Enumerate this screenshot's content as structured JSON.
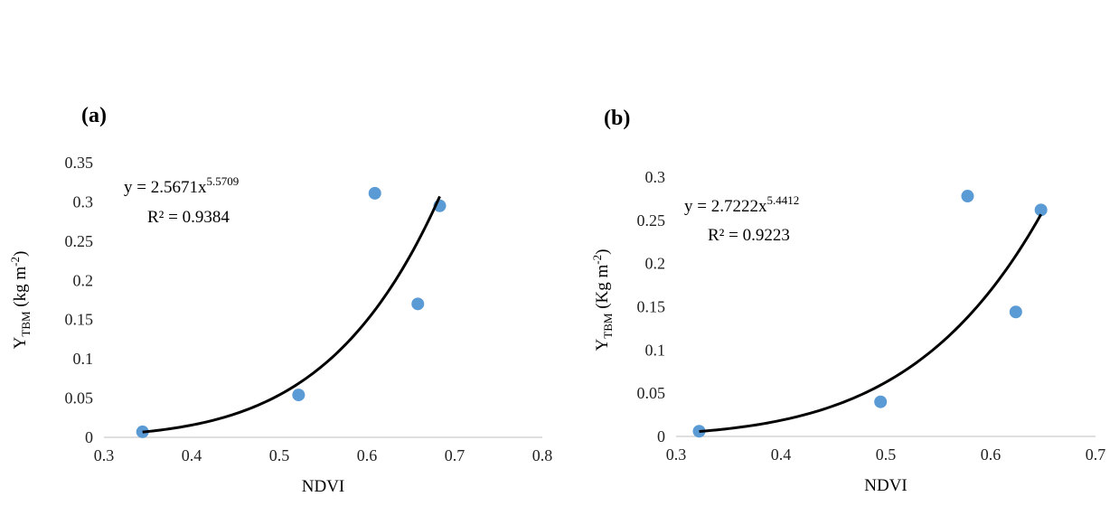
{
  "chart_data": [
    {
      "type": "scatter",
      "panel": "(a)",
      "xlabel": "NDVI",
      "ylabel": {
        "main": "Y",
        "sub": "TBM",
        "unit": " (kg m",
        "unit_sup": "-2",
        "close": ")"
      },
      "x": [
        0.344,
        0.522,
        0.609,
        0.658,
        0.683
      ],
      "values": [
        0.007,
        0.054,
        0.311,
        0.17,
        0.295
      ],
      "color": "#5b9bd5",
      "xlim": [
        0.3,
        0.8
      ],
      "xticks": [
        0.3,
        0.4,
        0.5,
        0.6,
        0.7,
        0.8
      ],
      "ylim": [
        0,
        0.35
      ],
      "yticks": [
        0,
        0.05,
        0.1,
        0.15,
        0.2,
        0.25,
        0.3,
        0.35
      ],
      "trendline": {
        "coefficient": 2.5671,
        "exponent": 5.5709,
        "color": "#000000",
        "equation": "y = 2.5671x",
        "equation_exponent": "5.5709",
        "r_squared": "R² = 0.9384"
      }
    },
    {
      "type": "scatter",
      "panel": "(b)",
      "xlabel": "NDVI",
      "ylabel": {
        "main": "Y",
        "sub": "TBM",
        "unit": " (Kg m",
        "unit_sup": "-2",
        "close": ")"
      },
      "x": [
        0.322,
        0.495,
        0.578,
        0.624,
        0.648
      ],
      "values": [
        0.006,
        0.04,
        0.278,
        0.144,
        0.262
      ],
      "color": "#5b9bd5",
      "xlim": [
        0.3,
        0.7
      ],
      "xticks": [
        0.3,
        0.4,
        0.5,
        0.6,
        0.7
      ],
      "ylim": [
        0,
        0.3
      ],
      "yticks": [
        0,
        0.05,
        0.1,
        0.15,
        0.2,
        0.25,
        0.3
      ],
      "trendline": {
        "coefficient": 2.7222,
        "exponent": 5.4412,
        "color": "#000000",
        "equation": "y = 2.7222x",
        "equation_exponent": "5.4412",
        "r_squared": "R² = 0.9223"
      }
    }
  ]
}
